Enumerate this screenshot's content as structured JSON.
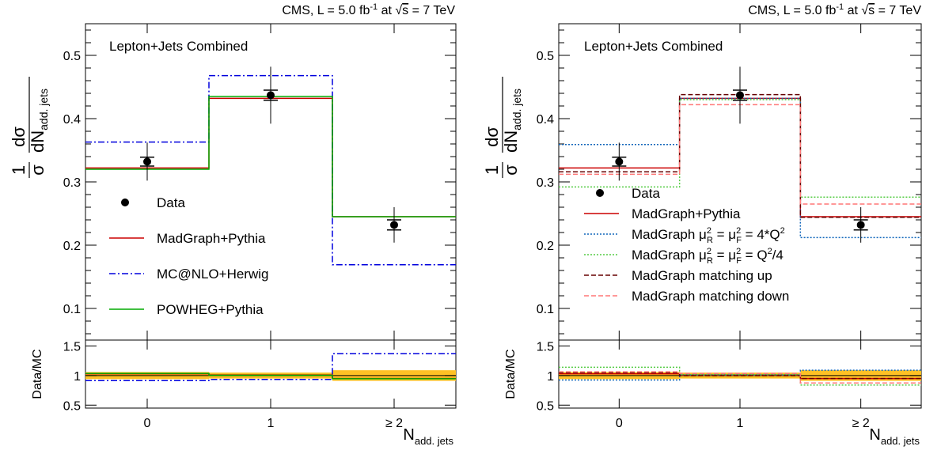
{
  "colors": {
    "data": "#000000",
    "madgraph": "#cc0000",
    "mcatnlo": "#0000dd",
    "powheg": "#00aa00",
    "scale_up": "#1166bb",
    "scale_down": "#55cc44",
    "match_up": "#660000",
    "match_down": "#ff7777",
    "band": "#ffc125"
  },
  "chart_data": [
    {
      "type": "step-histogram",
      "title": "CMS, L = 5.0 fb⁻¹ at √s = 7 TeV",
      "label": "Lepton+Jets Combined",
      "ylabel": "1/σ dσ/dN_add. jets",
      "xlabel": "N_add. jets",
      "categories": [
        "0",
        "1",
        "≥ 2"
      ],
      "ylim": [
        0.05,
        0.55
      ],
      "yticks": [
        0.1,
        0.2,
        0.3,
        0.4,
        0.5
      ],
      "ratio": {
        "ylabel": "Data/MC",
        "ylim": [
          0.45,
          1.6
        ],
        "yticks": [
          0.5,
          1,
          1.5
        ],
        "band": [
          0.06,
          0.05,
          0.09
        ]
      },
      "data": {
        "name": "Data",
        "values": [
          0.332,
          0.437,
          0.232
        ],
        "stat_err": [
          0.007,
          0.008,
          0.008
        ],
        "tot_err": [
          0.03,
          0.045,
          0.028
        ]
      },
      "series": [
        {
          "name": "MadGraph+Pythia",
          "style": "solid",
          "colorKey": "madgraph",
          "values": [
            0.322,
            0.432,
            0.245
          ],
          "ratio": [
            1.03,
            1.01,
            0.95
          ]
        },
        {
          "name": "MC@NLO+Herwig",
          "style": "dashdot",
          "colorKey": "mcatnlo",
          "values": [
            0.363,
            0.468,
            0.169
          ],
          "ratio": [
            0.915,
            0.935,
            1.37
          ]
        },
        {
          "name": "POWHEG+Pythia",
          "style": "solid",
          "colorKey": "powheg",
          "values": [
            0.32,
            0.435,
            0.245
          ],
          "ratio": [
            1.037,
            1.005,
            0.947
          ]
        }
      ],
      "legend": [
        "Data",
        "MadGraph+Pythia",
        "MC@NLO+Herwig",
        "POWHEG+Pythia"
      ]
    },
    {
      "type": "step-histogram",
      "title": "CMS, L = 5.0 fb⁻¹ at √s = 7 TeV",
      "label": "Lepton+Jets Combined",
      "ylabel": "1/σ dσ/dN_add. jets",
      "xlabel": "N_add. jets",
      "categories": [
        "0",
        "1",
        "≥ 2"
      ],
      "ylim": [
        0.05,
        0.55
      ],
      "yticks": [
        0.1,
        0.2,
        0.3,
        0.4,
        0.5
      ],
      "ratio": {
        "ylabel": "Data/MC",
        "ylim": [
          0.45,
          1.6
        ],
        "yticks": [
          0.5,
          1,
          1.5
        ],
        "band": [
          0.06,
          0.05,
          0.09
        ]
      },
      "data": {
        "name": "Data",
        "values": [
          0.332,
          0.437,
          0.232
        ],
        "stat_err": [
          0.007,
          0.008,
          0.008
        ],
        "tot_err": [
          0.03,
          0.045,
          0.028
        ]
      },
      "series": [
        {
          "name": "MadGraph+Pythia",
          "style": "solid",
          "colorKey": "madgraph",
          "values": [
            0.322,
            0.432,
            0.245
          ],
          "ratio": [
            1.03,
            1.01,
            0.95
          ]
        },
        {
          "name": "MadGraph μ²R = μ²F = 4*Q²",
          "style": "dotted",
          "colorKey": "scale_up",
          "values": [
            0.359,
            0.432,
            0.212
          ],
          "ratio": [
            0.925,
            1.01,
            1.09
          ]
        },
        {
          "name": "MadGraph μ²R = μ²F = Q²/4",
          "style": "dotted",
          "colorKey": "scale_down",
          "values": [
            0.292,
            0.43,
            0.276
          ],
          "ratio": [
            1.14,
            1.015,
            0.84
          ]
        },
        {
          "name": "MadGraph matching up",
          "style": "dashed",
          "colorKey": "match_up",
          "values": [
            0.316,
            0.438,
            0.244
          ],
          "ratio": [
            1.05,
            0.998,
            0.95
          ]
        },
        {
          "name": "MadGraph matching down",
          "style": "dashed",
          "colorKey": "match_down",
          "values": [
            0.312,
            0.422,
            0.265
          ],
          "ratio": [
            1.064,
            1.035,
            0.875
          ]
        }
      ],
      "legend": [
        "Data",
        "MadGraph+Pythia",
        "MadGraph μ²R = μ²F = 4*Q²",
        "MadGraph μ²R = μ²F = Q²/4",
        "MadGraph matching up",
        "MadGraph matching down"
      ]
    }
  ]
}
